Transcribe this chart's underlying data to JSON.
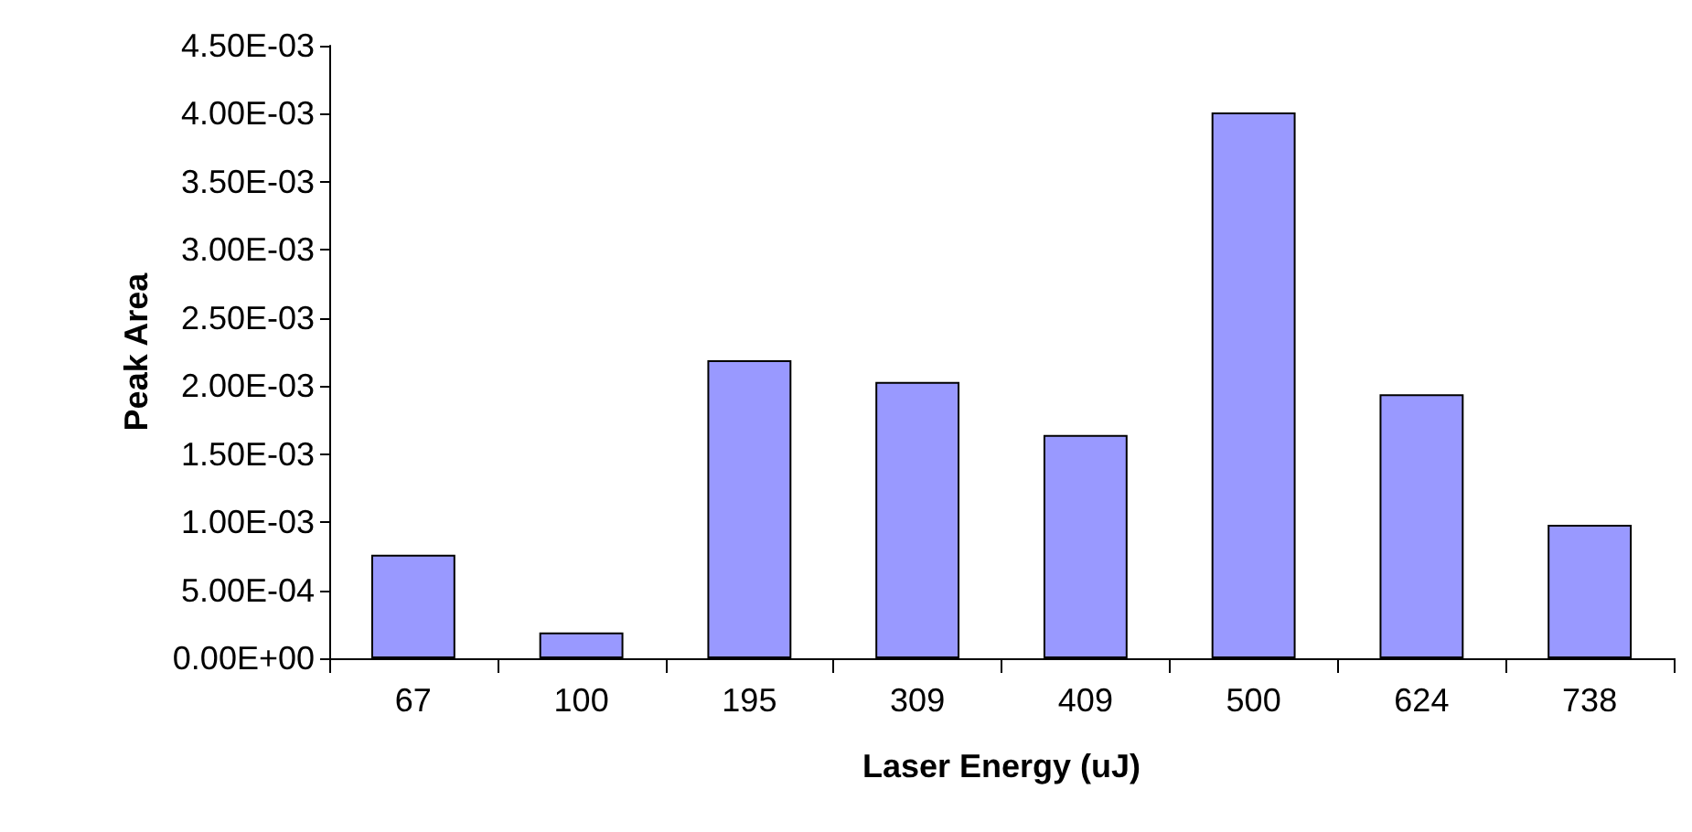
{
  "chart_data": {
    "type": "bar",
    "xlabel": "Laser Energy (uJ)",
    "ylabel": "Peak Area",
    "categories": [
      "67",
      "100",
      "195",
      "309",
      "409",
      "500",
      "624",
      "738"
    ],
    "values": [
      0.00076,
      0.00019,
      0.00219,
      0.00203,
      0.00164,
      0.00401,
      0.00194,
      0.00098
    ],
    "color": "#9999ff",
    "ylim": [
      0,
      0.0045
    ],
    "yticks": [
      {
        "value": 0,
        "label": "0.00E+00"
      },
      {
        "value": 0.0005,
        "label": "5.00E-04"
      },
      {
        "value": 0.001,
        "label": "1.00E-03"
      },
      {
        "value": 0.0015,
        "label": "1.50E-03"
      },
      {
        "value": 0.002,
        "label": "2.00E-03"
      },
      {
        "value": 0.0025,
        "label": "2.50E-03"
      },
      {
        "value": 0.003,
        "label": "3.00E-03"
      },
      {
        "value": 0.0035,
        "label": "3.50E-03"
      },
      {
        "value": 0.004,
        "label": "4.00E-03"
      },
      {
        "value": 0.0045,
        "label": "4.50E-03"
      }
    ],
    "grid": false
  }
}
